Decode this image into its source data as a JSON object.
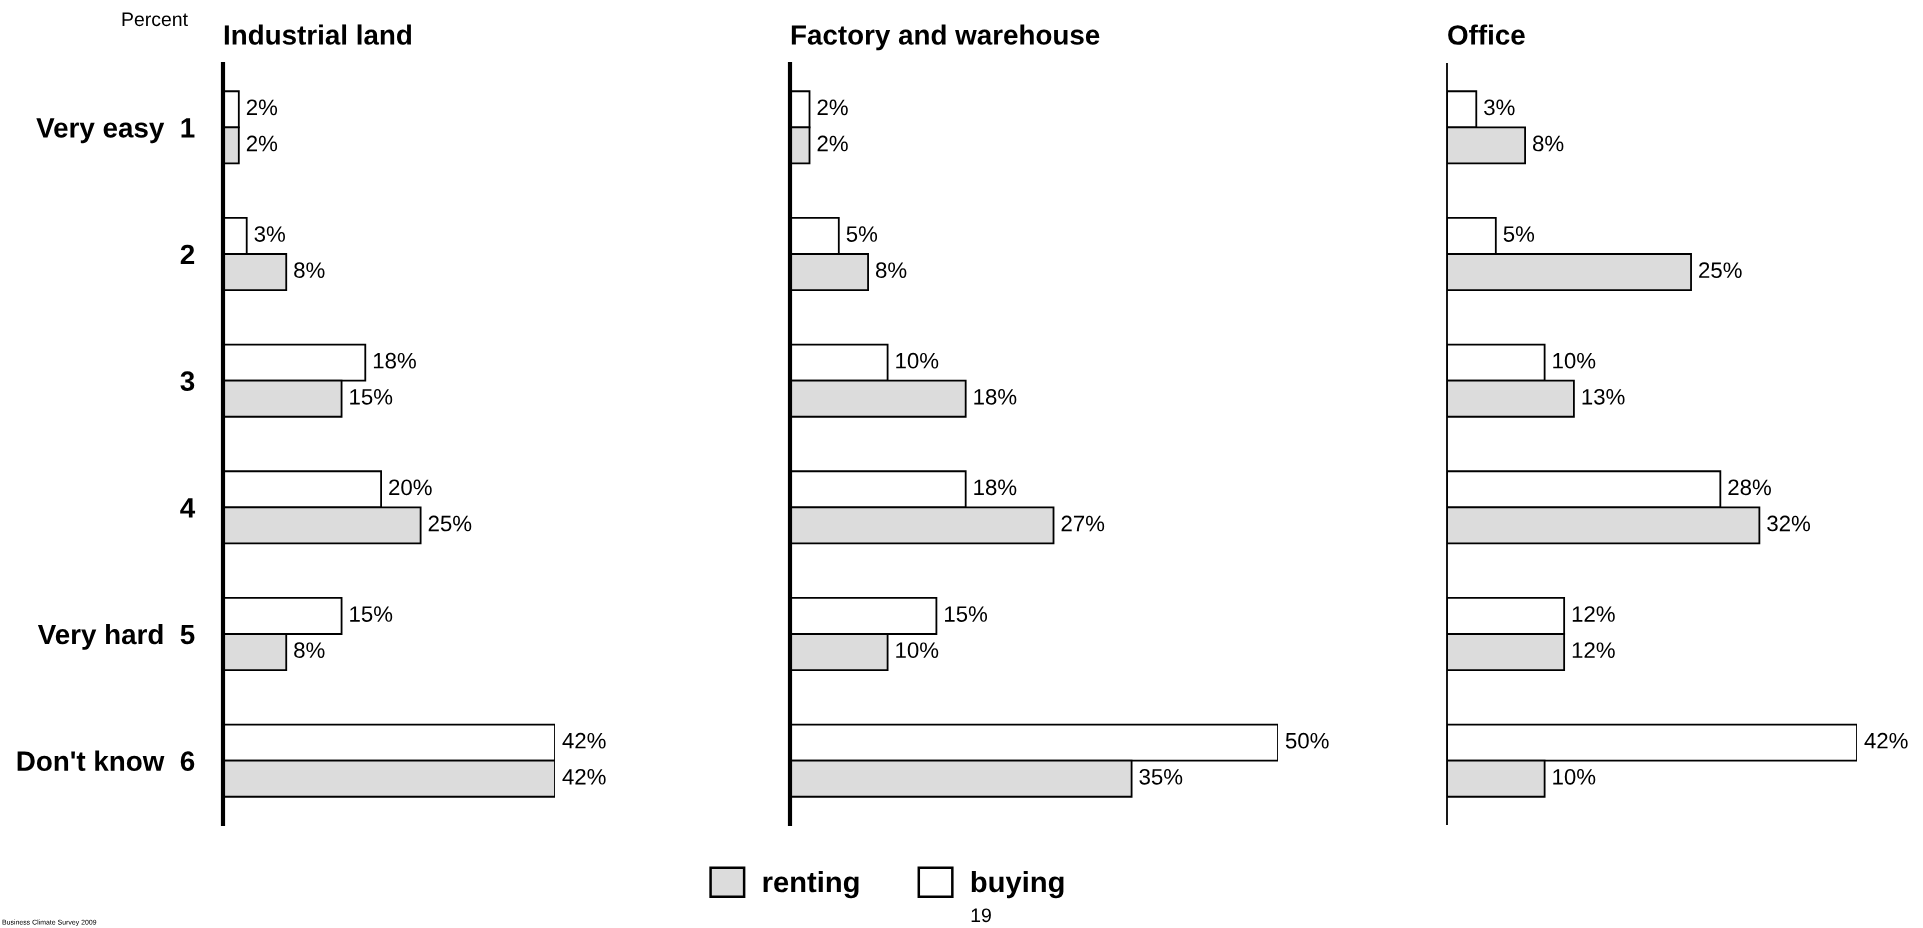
{
  "chart_data": [
    {
      "type": "bar",
      "orientation": "horizontal",
      "title": "Industrial land",
      "categories": [
        "Very easy  1",
        "2",
        "3",
        "4",
        "Very hard  5",
        "Don't know  6"
      ],
      "tick_labels": "y",
      "legend": false,
      "series": [
        {
          "color": "#ffffff",
          "values": [
            2,
            3,
            18,
            20,
            15,
            42
          ],
          "value_labels": [
            "2%",
            "3%",
            "18%",
            "20%",
            "15%",
            "42%"
          ]
        },
        {
          "color": "#dcdcdc",
          "values": [
            2,
            8,
            15,
            25,
            8,
            42
          ],
          "value_labels": [
            "2%",
            "8%",
            "15%",
            "25%",
            "8%",
            "42%"
          ]
        }
      ],
      "annotations": [
        "Percent",
        "Business Climate Survey 2009"
      ]
    },
    {
      "type": "bar",
      "orientation": "horizontal",
      "title": "Factory and warehouse",
      "categories": [
        null,
        null,
        null,
        null,
        null,
        null
      ],
      "tick_labels": false,
      "legend": "bottom",
      "series": [
        {
          "name": "buying",
          "color": "#ffffff",
          "values": [
            2,
            5,
            10,
            18,
            15,
            50
          ],
          "value_labels": [
            "2%",
            "5%",
            "10%",
            "18%",
            "15%",
            "50%"
          ]
        },
        {
          "name": "renting",
          "color": "#dcdcdc",
          "values": [
            2,
            8,
            18,
            27,
            10,
            35
          ],
          "value_labels": [
            "2%",
            "8%",
            "18%",
            "27%",
            "10%",
            "35%"
          ]
        }
      ],
      "annotations": [
        "19"
      ]
    },
    {
      "type": "bar",
      "orientation": "horizontal",
      "title": "Office",
      "categories": [
        null,
        null,
        null,
        null,
        null,
        null
      ],
      "tick_labels": false,
      "legend": false,
      "series": [
        {
          "color": "#ffffff",
          "values": [
            3,
            5,
            10,
            28,
            12,
            42
          ],
          "value_labels": [
            "3%",
            "5%",
            "10%",
            "28%",
            "12%",
            "42%"
          ]
        },
        {
          "color": "#dcdcdc",
          "values": [
            8,
            25,
            13,
            32,
            12,
            10
          ],
          "value_labels": [
            "8%",
            "25%",
            "13%",
            "32%",
            "12%",
            "10%"
          ]
        }
      ]
    }
  ]
}
